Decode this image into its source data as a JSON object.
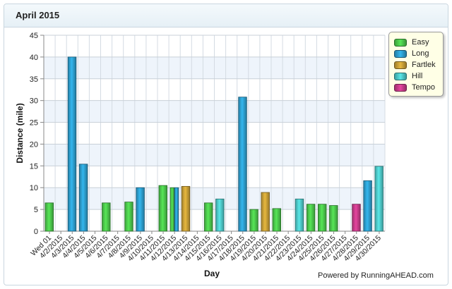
{
  "header": {
    "title": "April 2015"
  },
  "footer": {
    "powered_by": "Powered by RunningAHEAD.com"
  },
  "colors": {
    "Easy": "#4cc84c",
    "Long": "#2d9fcf",
    "Fartlek": "#c9a037",
    "Hill": "#4dc9c9",
    "Tempo": "#c83c8a"
  },
  "chart_data": {
    "type": "bar",
    "xlabel": "Day",
    "ylabel": "Distance (mile)",
    "ylim": [
      0,
      45
    ],
    "yticks": [
      0,
      5,
      10,
      15,
      20,
      25,
      30,
      35,
      40,
      45
    ],
    "grid": true,
    "legend_position": "top-right",
    "categories": [
      "Wed 01",
      "4/2/2015",
      "4/3/2015",
      "4/4/2015",
      "4/5/2015",
      "4/6/2015",
      "4/7/2015",
      "4/8/2015",
      "4/9/2015",
      "4/10/2015",
      "4/11/2015",
      "4/12/2015",
      "4/13/2015",
      "4/14/2015",
      "4/15/2015",
      "4/16/2015",
      "4/17/2015",
      "4/18/2015",
      "4/19/2015",
      "4/20/2015",
      "4/21/2015",
      "4/22/2015",
      "4/23/2015",
      "4/24/2015",
      "4/25/2015",
      "4/26/2015",
      "4/27/2015",
      "4/28/2015",
      "4/29/2015",
      "4/30/2015"
    ],
    "series": [
      {
        "name": "Easy",
        "values": [
          6.5,
          0,
          0,
          0,
          0,
          6.5,
          0,
          6.7,
          0,
          0,
          10.5,
          10,
          0,
          0,
          6.5,
          0,
          0,
          0,
          5,
          0,
          5.2,
          0,
          0,
          6.2,
          6.2,
          5.9,
          0,
          0,
          0,
          0
        ]
      },
      {
        "name": "Long",
        "values": [
          0,
          0,
          40,
          15.4,
          0,
          0,
          0,
          0,
          10,
          0,
          0,
          10,
          0,
          0,
          0,
          0,
          0,
          30.8,
          0,
          0,
          0,
          0,
          0,
          0,
          0,
          0,
          0,
          0,
          11.6,
          0
        ]
      },
      {
        "name": "Fartlek",
        "values": [
          0,
          0,
          0,
          0,
          0,
          0,
          0,
          0,
          0,
          0,
          0,
          0,
          10.3,
          0,
          0,
          0,
          0,
          0,
          0,
          8.9,
          0,
          0,
          0,
          0,
          0,
          0,
          0,
          0,
          0,
          0
        ]
      },
      {
        "name": "Hill",
        "values": [
          0,
          0,
          0,
          0,
          0,
          0,
          0,
          0,
          0,
          0,
          0,
          0,
          0,
          0,
          0,
          7.4,
          0,
          0,
          0,
          0,
          0,
          0,
          7.4,
          0,
          0,
          0,
          0,
          0,
          0,
          14.9
        ]
      },
      {
        "name": "Tempo",
        "values": [
          0,
          0,
          0,
          0,
          0,
          0,
          0,
          0,
          0,
          0,
          0,
          0,
          0,
          0,
          0,
          0,
          0,
          0,
          0,
          0,
          0,
          0,
          0,
          0,
          0,
          0,
          0,
          6.2,
          0,
          0
        ]
      }
    ]
  }
}
